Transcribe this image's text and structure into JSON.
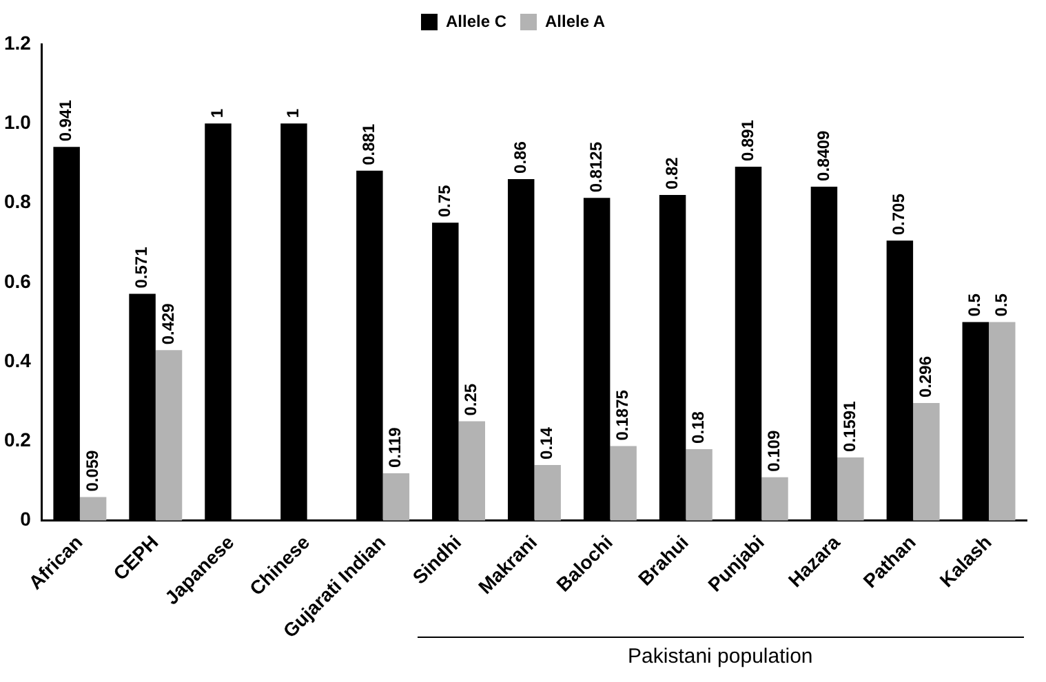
{
  "chart_data": {
    "type": "bar",
    "categories": [
      "African",
      "CEPH",
      "Japanese",
      "Chinese",
      "Gujarati Indian",
      "Sindhi",
      "Makrani",
      "Balochi",
      "Brahui",
      "Punjabi",
      "Hazara",
      "Pathan",
      "Kalash"
    ],
    "series": [
      {
        "name": "Allele C",
        "color": "#000000",
        "values": [
          0.941,
          0.571,
          1,
          1,
          0.881,
          0.75,
          0.86,
          0.8125,
          0.82,
          0.891,
          0.8409,
          0.705,
          0.5
        ]
      },
      {
        "name": "Allele A",
        "color": "#b3b3b3",
        "values": [
          0.059,
          0.429,
          null,
          null,
          0.119,
          0.25,
          0.14,
          0.1875,
          0.18,
          0.109,
          0.1591,
          0.296,
          0.5
        ]
      }
    ],
    "ylim": [
      0,
      1.2
    ],
    "yticks": [
      0,
      0.2,
      0.4,
      0.6,
      0.8,
      {
        "value": 1,
        "label": "1.0"
      },
      1.2
    ],
    "grid": false,
    "legend": "top",
    "data_labels": true,
    "annotations": [
      "Pakistani population"
    ]
  }
}
